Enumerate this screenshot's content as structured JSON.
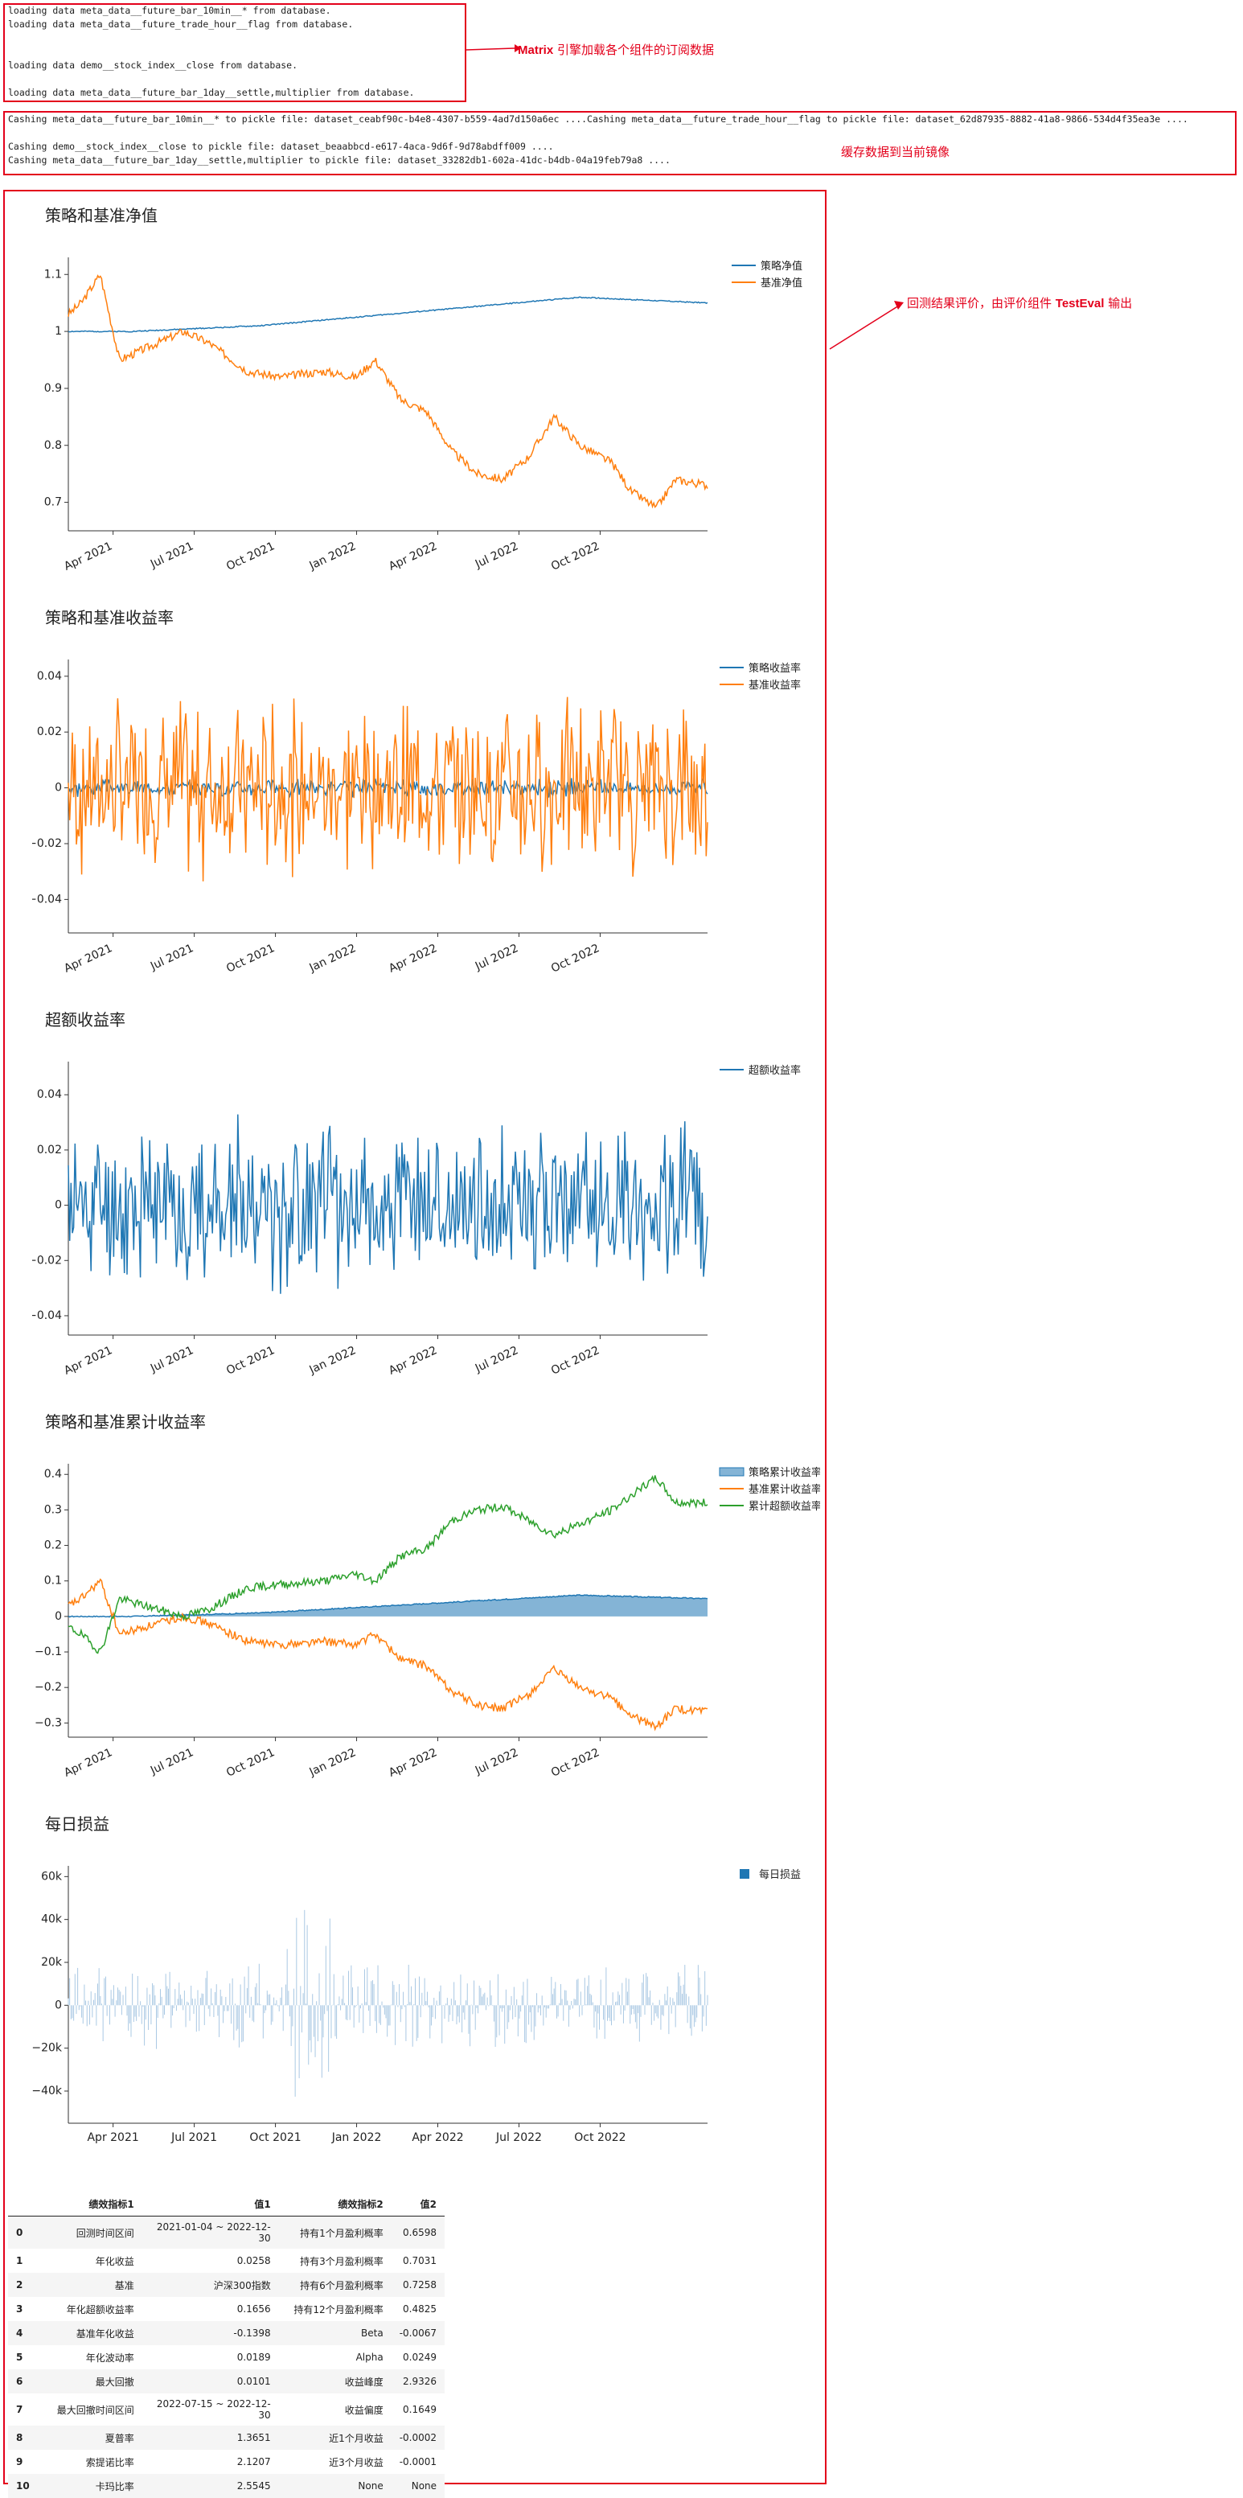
{
  "logs": {
    "box1_lines": [
      "loading data meta_data__future_bar_10min__* from database.",
      "loading data meta_data__future_trade_hour__flag from database.",
      "",
      "",
      "loading data demo__stock_index__close from database.",
      "",
      "loading data meta_data__future_bar_1day__settle,multiplier from database."
    ],
    "box2_lines": [
      "Cashing meta_data__future_bar_10min__* to pickle file: dataset_ceabf90c-b4e8-4307-b559-4ad7d150a6ec ....Cashing meta_data__future_trade_hour__flag to pickle file: dataset_62d87935-8882-41a8-9866-534d4f35ea3e ....",
      "",
      "Cashing demo__stock_index__close to pickle file: dataset_beaabbcd-e617-4aca-9d6f-9d78abdff009 ....",
      "Cashing meta_data__future_bar_1day__settle,multiplier to pickle file: dataset_33282db1-602a-41dc-b4db-04a19feb79a8 ...."
    ]
  },
  "annotations": {
    "a1_bold": "Matrix",
    "a1_text": " 引擎加载各个组件的订阅数据",
    "a2_text": "缓存数据到当前镜像",
    "a3_text": "回测结果评价，由评价组件 ",
    "a3_bold": "TestEval",
    "a3_tail": " 输出"
  },
  "colors": {
    "red": "#e3001b",
    "blue": "#1f77b4",
    "orange": "#ff7f0e",
    "green": "#2ca02c"
  },
  "chart_data": [
    {
      "type": "line",
      "title": "策略和基准净值",
      "x_ticks": [
        "Apr 2021",
        "Jul 2021",
        "Oct 2021",
        "Jan 2022",
        "Apr 2022",
        "Jul 2022",
        "Oct 2022"
      ],
      "y_ticks": [
        "1.1",
        "1",
        "0.9",
        "0.8",
        "0.7"
      ],
      "y_tick_values": [
        1.1,
        1.0,
        0.9,
        0.8,
        0.7
      ],
      "ylim": [
        0.65,
        1.13
      ],
      "series": [
        {
          "name": "策略净值",
          "color": "#1f77b4",
          "x": [
            0,
            0.1,
            0.2,
            0.3,
            0.4,
            0.5,
            0.6,
            0.7,
            0.8,
            0.9,
            1.0
          ],
          "y": [
            1.0,
            1.0,
            1.005,
            1.01,
            1.02,
            1.03,
            1.04,
            1.05,
            1.06,
            1.055,
            1.05
          ]
        },
        {
          "name": "基准净值",
          "color": "#ff7f0e",
          "x": [
            0,
            0.02,
            0.05,
            0.08,
            0.12,
            0.18,
            0.22,
            0.28,
            0.33,
            0.4,
            0.45,
            0.48,
            0.52,
            0.56,
            0.6,
            0.64,
            0.68,
            0.72,
            0.76,
            0.8,
            0.85,
            0.88,
            0.92,
            0.95,
            1.0
          ],
          "y": [
            1.03,
            1.05,
            1.1,
            0.95,
            0.97,
            1.0,
            0.98,
            0.93,
            0.92,
            0.93,
            0.92,
            0.95,
            0.88,
            0.86,
            0.79,
            0.75,
            0.74,
            0.78,
            0.85,
            0.8,
            0.77,
            0.72,
            0.69,
            0.74,
            0.73
          ]
        }
      ]
    },
    {
      "type": "line",
      "title": "策略和基准收益率",
      "x_ticks": [
        "Apr 2021",
        "Jul 2021",
        "Oct 2021",
        "Jan 2022",
        "Apr 2022",
        "Jul 2022",
        "Oct 2022"
      ],
      "y_ticks": [
        "0.04",
        "0.02",
        "0",
        "−0.02",
        "−0.04"
      ],
      "y_tick_values": [
        0.04,
        0.02,
        0,
        -0.02,
        -0.04
      ],
      "ylim": [
        -0.052,
        0.046
      ],
      "series": [
        {
          "name": "策略收益率",
          "color": "#1f77b4",
          "amplitude": 0.003,
          "seed": 3
        },
        {
          "name": "基准收益率",
          "color": "#ff7f0e",
          "amplitude": 0.03,
          "seed": 7
        }
      ]
    },
    {
      "type": "line",
      "title": "超额收益率",
      "x_ticks": [
        "Apr 2021",
        "Jul 2021",
        "Oct 2021",
        "Jan 2022",
        "Apr 2022",
        "Jul 2022",
        "Oct 2022"
      ],
      "y_ticks": [
        "0.04",
        "0.02",
        "0",
        "−0.02",
        "−0.04"
      ],
      "y_tick_values": [
        0.04,
        0.02,
        0,
        -0.02,
        -0.04
      ],
      "ylim": [
        -0.047,
        0.052
      ],
      "series": [
        {
          "name": "超额收益率",
          "color": "#1f77b4",
          "amplitude": 0.028,
          "seed": 11
        }
      ]
    },
    {
      "type": "area",
      "title": "策略和基准累计收益率",
      "x_ticks": [
        "Apr 2021",
        "Jul 2021",
        "Oct 2021",
        "Jan 2022",
        "Apr 2022",
        "Jul 2022",
        "Oct 2022"
      ],
      "y_ticks": [
        "0.4",
        "0.3",
        "0.2",
        "0.1",
        "0",
        "−0.1",
        "−0.2",
        "−0.3"
      ],
      "y_tick_values": [
        0.4,
        0.3,
        0.2,
        0.1,
        0,
        -0.1,
        -0.2,
        -0.3
      ],
      "ylim": [
        -0.34,
        0.43
      ],
      "series": [
        {
          "name": "策略累计收益率",
          "color": "#1f77b4",
          "fill": true,
          "x": [
            0,
            0.1,
            0.2,
            0.3,
            0.4,
            0.5,
            0.6,
            0.7,
            0.8,
            0.9,
            1.0
          ],
          "y": [
            0.0,
            0.0,
            0.005,
            0.01,
            0.02,
            0.03,
            0.04,
            0.05,
            0.06,
            0.055,
            0.05
          ]
        },
        {
          "name": "基准累计收益率",
          "color": "#ff7f0e",
          "x": [
            0,
            0.02,
            0.05,
            0.08,
            0.12,
            0.18,
            0.22,
            0.28,
            0.33,
            0.4,
            0.45,
            0.48,
            0.52,
            0.56,
            0.6,
            0.64,
            0.68,
            0.72,
            0.76,
            0.8,
            0.85,
            0.88,
            0.92,
            0.95,
            1.0
          ],
          "y": [
            0.03,
            0.05,
            0.1,
            -0.05,
            -0.03,
            0.0,
            -0.02,
            -0.07,
            -0.08,
            -0.07,
            -0.08,
            -0.05,
            -0.12,
            -0.14,
            -0.21,
            -0.25,
            -0.26,
            -0.22,
            -0.15,
            -0.2,
            -0.23,
            -0.28,
            -0.31,
            -0.26,
            -0.27
          ]
        },
        {
          "name": "累计超额收益率",
          "color": "#2ca02c",
          "x": [
            0,
            0.02,
            0.05,
            0.08,
            0.12,
            0.18,
            0.22,
            0.28,
            0.33,
            0.4,
            0.45,
            0.48,
            0.52,
            0.56,
            0.6,
            0.64,
            0.68,
            0.72,
            0.76,
            0.8,
            0.85,
            0.88,
            0.92,
            0.95,
            1.0
          ],
          "y": [
            -0.03,
            -0.05,
            -0.1,
            0.05,
            0.03,
            0.0,
            0.02,
            0.08,
            0.09,
            0.1,
            0.12,
            0.1,
            0.17,
            0.19,
            0.27,
            0.3,
            0.31,
            0.27,
            0.23,
            0.26,
            0.3,
            0.34,
            0.39,
            0.32,
            0.32
          ]
        }
      ]
    },
    {
      "type": "bar",
      "title": "每日损益",
      "x_ticks": [
        "Apr 2021",
        "Jul 2021",
        "Oct 2021",
        "Jan 2022",
        "Apr 2022",
        "Jul 2022",
        "Oct 2022"
      ],
      "y_ticks": [
        "60k",
        "40k",
        "20k",
        "0",
        "−20k",
        "−40k"
      ],
      "y_tick_values": [
        60000,
        40000,
        20000,
        0,
        -20000,
        -40000
      ],
      "ylim": [
        -55000,
        65000
      ],
      "series": [
        {
          "name": "每日损益",
          "color": "#1f77b4",
          "amplitude": 15000,
          "seed": 19
        }
      ]
    }
  ],
  "table": {
    "headers": [
      "",
      "绩效指标1",
      "值1",
      "绩效指标2",
      "值2"
    ],
    "rows": [
      [
        "0",
        "回测时间区间",
        "2021-01-04 ~ 2022-12-30",
        "持有1个月盈利概率",
        "0.6598"
      ],
      [
        "1",
        "年化收益",
        "0.0258",
        "持有3个月盈利概率",
        "0.7031"
      ],
      [
        "2",
        "基准",
        "沪深300指数",
        "持有6个月盈利概率",
        "0.7258"
      ],
      [
        "3",
        "年化超额收益率",
        "0.1656",
        "持有12个月盈利概率",
        "0.4825"
      ],
      [
        "4",
        "基准年化收益",
        "-0.1398",
        "Beta",
        "-0.0067"
      ],
      [
        "5",
        "年化波动率",
        "0.0189",
        "Alpha",
        "0.0249"
      ],
      [
        "6",
        "最大回撤",
        "0.0101",
        "收益峰度",
        "2.9326"
      ],
      [
        "7",
        "最大回撤时间区间",
        "2022-07-15 ~ 2022-12-30",
        "收益偏度",
        "0.1649"
      ],
      [
        "8",
        "夏普率",
        "1.3651",
        "近1个月收益",
        "-0.0002"
      ],
      [
        "9",
        "索提诺比率",
        "2.1207",
        "近3个月收益",
        "-0.0001"
      ],
      [
        "10",
        "卡玛比率",
        "2.5545",
        "None",
        "None"
      ]
    ]
  }
}
